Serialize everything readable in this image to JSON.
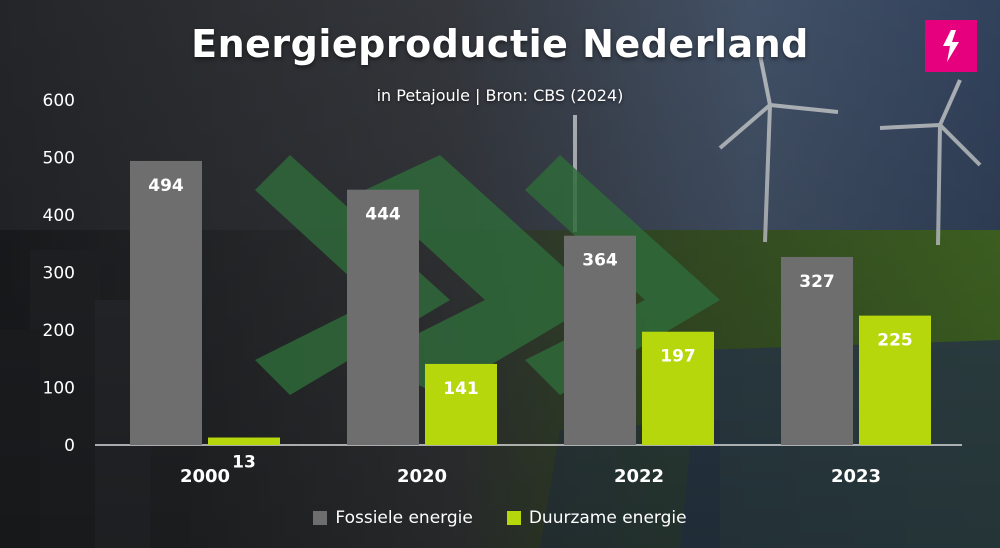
{
  "header": {
    "title": "Energieproductie Nederland",
    "subtitle": "in Petajoule | Bron: CBS (2024)"
  },
  "brand": {
    "icon": "lightning-bolt-icon",
    "color": "#e6007e"
  },
  "colors": {
    "fossil": "#6e6e6e",
    "renewable": "#b5d70b",
    "chevron": "#2f6b3a"
  },
  "chart_data": {
    "type": "bar",
    "title": "Energieproductie Nederland",
    "subtitle": "in Petajoule | Bron: CBS (2024)",
    "categories": [
      "2000",
      "2020",
      "2022",
      "2023"
    ],
    "series": [
      {
        "name": "Fossiele energie",
        "values": [
          494,
          444,
          364,
          327
        ]
      },
      {
        "name": "Duurzame energie",
        "values": [
          13,
          141,
          197,
          225
        ]
      }
    ],
    "yticks": [
      "0",
      "100",
      "200",
      "300",
      "400",
      "500",
      "600"
    ],
    "ylim": [
      0,
      600
    ],
    "legend": "bottom-center",
    "grid": false,
    "data_labels": true
  }
}
